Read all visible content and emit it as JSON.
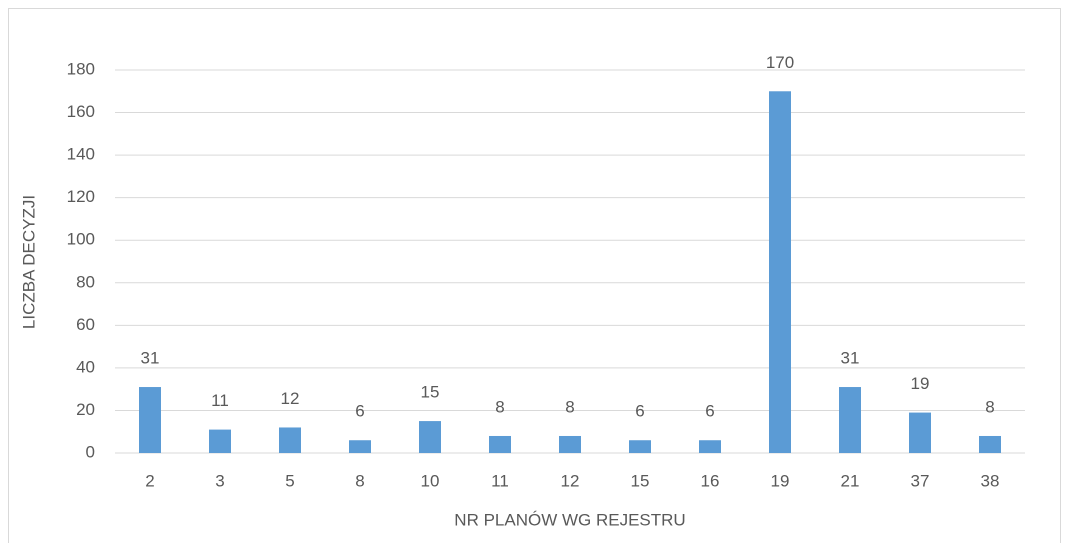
{
  "chart_data": {
    "type": "bar",
    "x_label": "NR PLANÓW WG REJESTRU",
    "y_label": "LICZBA DECYZJI",
    "categories": [
      "2",
      "3",
      "5",
      "8",
      "10",
      "11",
      "12",
      "15",
      "16",
      "19",
      "21",
      "37",
      "38"
    ],
    "values": [
      31,
      11,
      12,
      6,
      15,
      8,
      8,
      6,
      6,
      170,
      31,
      19,
      8
    ],
    "color": "#5b9bd5",
    "ylim": [
      0,
      180
    ],
    "yticks": [
      0,
      20,
      40,
      60,
      80,
      100,
      120,
      140,
      160,
      180
    ],
    "grid": true
  }
}
